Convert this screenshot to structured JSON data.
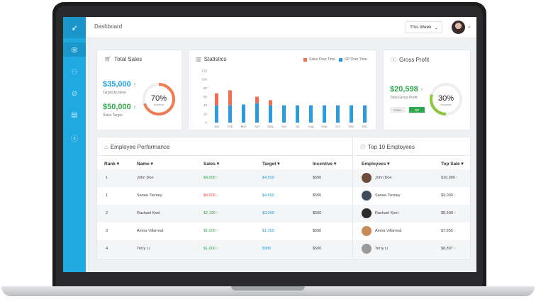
{
  "header": {
    "title": "Dashboard",
    "period": "This Week"
  },
  "sidebar": {
    "icons": [
      "rocket-icon",
      "dashboard-icon",
      "user-icon",
      "currency-icon",
      "document-icon",
      "dollar-icon"
    ]
  },
  "total_sales": {
    "title": "Total Sales",
    "achieved_value": "$35,000",
    "achieved_label": "Target Achieve",
    "target_value": "$50,000",
    "target_label": "Sales Target",
    "percent_text": "70%",
    "percent_label": "Achieve",
    "percent": 0.7
  },
  "statistics": {
    "title": "Statistics",
    "legend": [
      "Sales Over Time",
      "GP Over Time"
    ]
  },
  "gross_profit": {
    "title": "Gross Profit",
    "value": "$20,598",
    "label": "Total Gross Profit",
    "percent_text": "30%",
    "percent_label": "Increase",
    "percent": 0.3,
    "toggle": [
      "Sales",
      "GP"
    ]
  },
  "employee_performance": {
    "title": "Employee Performance",
    "columns": [
      "Rank",
      "Name",
      "Sales",
      "Target",
      "Incentive"
    ],
    "rows": [
      {
        "rank": "1",
        "name": "John Doe",
        "sales": "$4,000",
        "trend": "up",
        "target": "$4,500",
        "incentive": "$500"
      },
      {
        "rank": "1",
        "name": "Sanaa Tierney",
        "sales": "$4,000",
        "trend": "down",
        "target": "$4,500",
        "incentive": "$500"
      },
      {
        "rank": "2",
        "name": "Rachael Kent",
        "sales": "$2,100",
        "trend": "up",
        "target": "$3,000",
        "incentive": "$500"
      },
      {
        "rank": "3",
        "name": "Amira Villarreal",
        "sales": "$1,000",
        "trend": "up",
        "target": "$1,300",
        "incentive": "$500"
      },
      {
        "rank": "4",
        "name": "Terry Li",
        "sales": "$1,000",
        "trend": "up",
        "target": "$980",
        "incentive": "$500"
      }
    ]
  },
  "top_employees": {
    "title": "Top 10  Employees",
    "columns": [
      "Employees",
      "Top Sale"
    ],
    "rows": [
      {
        "name": "John Doe",
        "sale": "$10,000",
        "color": "#6b4a3a"
      },
      {
        "name": "Sanaa Tierney",
        "sale": "$9,000",
        "color": "#3f4d5a"
      },
      {
        "name": "Rachael Kent",
        "sale": "$8,500",
        "color": "#2b2b2b"
      },
      {
        "name": "Amira Villarreal",
        "sale": "$7,956",
        "color": "#c98a5a"
      },
      {
        "name": "Terry Li",
        "sale": "$8,897",
        "color": "#9a9a9a"
      }
    ]
  },
  "colors": {
    "accent": "#1fa9e1",
    "sales_bar": "#f36c4f",
    "gp_bar": "#2e9be0",
    "green": "#2fa84f"
  },
  "chart_data": {
    "type": "bar",
    "categories": [
      "Jan",
      "Feb",
      "Mar",
      "Apr",
      "May",
      "Jun",
      "Jul",
      "Aug",
      "Sep",
      "Oct",
      "Nov",
      "Dec"
    ],
    "series": [
      {
        "name": "Sales Over Time",
        "values": [
          28,
          35,
          0,
          15,
          12,
          0,
          0,
          0,
          0,
          0,
          0,
          0
        ]
      },
      {
        "name": "GP Over Time",
        "values": [
          40,
          40,
          42,
          45,
          40,
          40,
          40,
          40,
          40,
          40,
          40,
          40
        ]
      }
    ],
    "y_ticks": [
      "120",
      "100",
      "80",
      "60",
      "40",
      "20",
      "0"
    ],
    "ylim": [
      0,
      120
    ],
    "stacked": true,
    "legend_position": "top-right"
  }
}
